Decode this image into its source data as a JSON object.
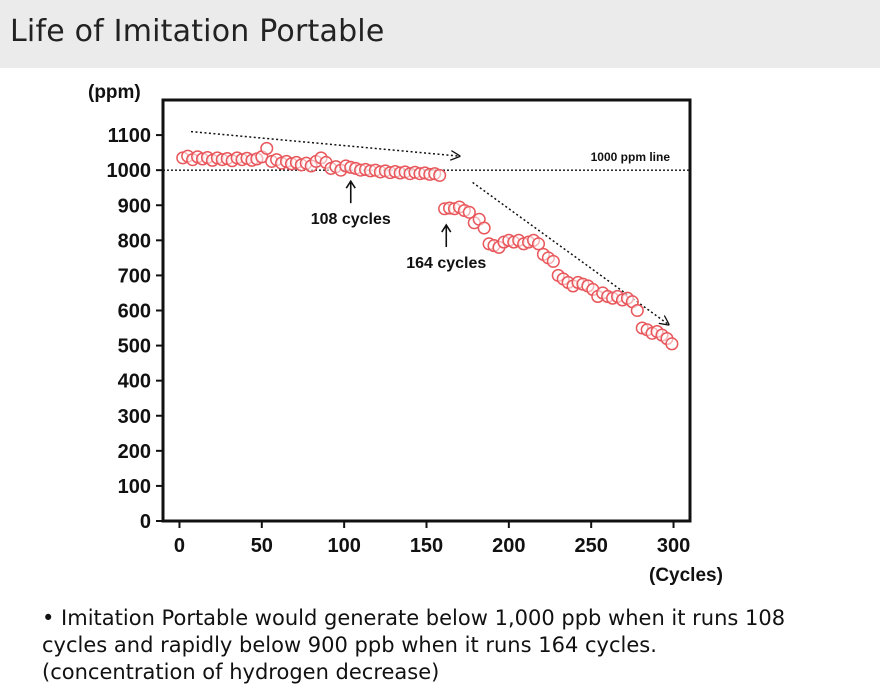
{
  "page": {
    "title": "Life of Imitation Portable",
    "caption_lines": [
      "• Imitation Portable would generate below 1,000 ppb when it runs 108",
      "cycles and rapidly below 900 ppb when it runs 164 cycles.",
      "(concentration of hydrogen decrease)"
    ]
  },
  "chart_data": {
    "type": "scatter",
    "ylabel": "(ppm)",
    "xlabel": "(Cycles)",
    "xlim": [
      -10,
      310
    ],
    "ylim": [
      0,
      1200
    ],
    "xticks": [
      0,
      50,
      100,
      150,
      200,
      250,
      300
    ],
    "yticks": [
      0,
      100,
      200,
      300,
      400,
      500,
      600,
      700,
      800,
      900,
      1000,
      1100
    ],
    "grid": false,
    "marker_color": "#e8575c",
    "reference_line": {
      "y": 1000,
      "label": "1000 ppm line"
    },
    "annotations": [
      {
        "text": "108 cycles",
        "x": 104,
        "y": 980
      },
      {
        "text": "164 cycles",
        "x": 162,
        "y": 855
      }
    ],
    "trend_arrows": [
      {
        "from": [
          7,
          1110
        ],
        "to": [
          170,
          1040
        ]
      },
      {
        "from": [
          178,
          965
        ],
        "to": [
          297,
          560
        ]
      }
    ],
    "series": [
      {
        "x": [
          2,
          5,
          8,
          11,
          14,
          17,
          20,
          23,
          26,
          29,
          32,
          35,
          38,
          41,
          44,
          47,
          50,
          53,
          56,
          59,
          62,
          65,
          68,
          71,
          74,
          77,
          80,
          83,
          86,
          89,
          92,
          95,
          98,
          101,
          104,
          107,
          110,
          113,
          116,
          119,
          122,
          125,
          128,
          131,
          134,
          137,
          140,
          143,
          146,
          149,
          152,
          155,
          158,
          161,
          164,
          167,
          170,
          173,
          176,
          179,
          182,
          185,
          188,
          191,
          194,
          197,
          200,
          203,
          206,
          209,
          212,
          215,
          218,
          221,
          224,
          227,
          230,
          233,
          236,
          239,
          242,
          245,
          248,
          251,
          254,
          257,
          260,
          263,
          266,
          269,
          272,
          275,
          278,
          281,
          284,
          287,
          290,
          293,
          296,
          299
        ],
        "y": [
          1035,
          1040,
          1030,
          1038,
          1032,
          1036,
          1028,
          1035,
          1030,
          1033,
          1027,
          1035,
          1030,
          1034,
          1028,
          1032,
          1038,
          1062,
          1025,
          1030,
          1020,
          1025,
          1018,
          1022,
          1015,
          1020,
          1012,
          1025,
          1035,
          1022,
          1005,
          1010,
          1000,
          1012,
          1008,
          1005,
          1000,
          1002,
          998,
          1000,
          995,
          998,
          993,
          996,
          992,
          995,
          990,
          994,
          990,
          992,
          988,
          990,
          985,
          890,
          892,
          890,
          895,
          885,
          880,
          850,
          860,
          835,
          790,
          785,
          780,
          795,
          800,
          795,
          800,
          790,
          795,
          800,
          790,
          760,
          750,
          740,
          700,
          690,
          680,
          670,
          680,
          675,
          670,
          660,
          640,
          650,
          640,
          635,
          640,
          630,
          635,
          625,
          600,
          550,
          545,
          535,
          540,
          530,
          520,
          505
        ]
      }
    ]
  }
}
